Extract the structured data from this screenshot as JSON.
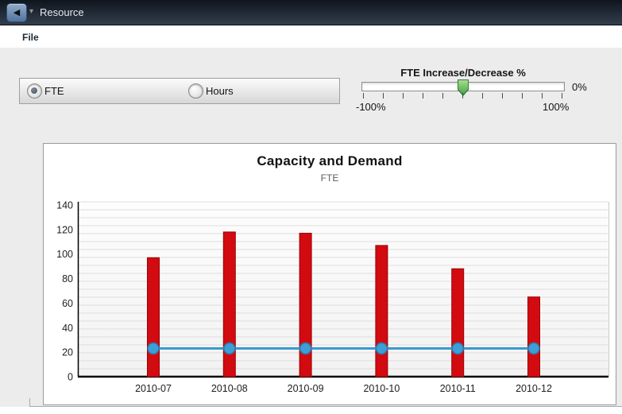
{
  "titlebar": {
    "title": "Resource",
    "back_icon": "◀",
    "caret_icon": "▾"
  },
  "menubar": {
    "items": [
      "File"
    ]
  },
  "controls": {
    "unit_toggle": {
      "options": [
        {
          "label": "FTE",
          "selected": true
        },
        {
          "label": "Hours",
          "selected": false
        }
      ]
    },
    "slider": {
      "label": "FTE Increase/Decrease %",
      "value_label": "0%",
      "min_label": "-100%",
      "max_label": "100%",
      "value": 0,
      "min": -100,
      "max": 100,
      "tick_count": 11,
      "thumb_color": "#4aa348"
    }
  },
  "chart_data": {
    "type": "bar",
    "title": "Capacity and Demand",
    "subtitle": "FTE",
    "categories": [
      "2010-07",
      "2010-08",
      "2010-09",
      "2010-10",
      "2010-11",
      "2010-12"
    ],
    "series": [
      {
        "id": "demand-bars",
        "type": "bar",
        "values": [
          97,
          118,
          117,
          107,
          88,
          65
        ],
        "color": "#d20b10",
        "border_color": "#9e0005"
      },
      {
        "id": "capacity-line",
        "type": "line",
        "values": [
          23,
          23,
          23,
          23,
          23,
          23
        ],
        "color": "#3a99d0",
        "point_fill": "#3e9ed6",
        "point_border": "#2a7aad"
      }
    ],
    "ylim": [
      0,
      140
    ],
    "yticks": [
      0,
      20,
      40,
      60,
      80,
      100,
      120,
      140
    ],
    "grid": true,
    "legend": "none"
  },
  "colors": {
    "titlebar_top": "#0f151d",
    "titlebar_bottom": "#323e4c",
    "content_bg": "#ececec",
    "panel_border": "#9b9b9b",
    "bar_red": "#d20b10",
    "line_blue": "#3a99d0",
    "thumb_green": "#4aa348"
  }
}
